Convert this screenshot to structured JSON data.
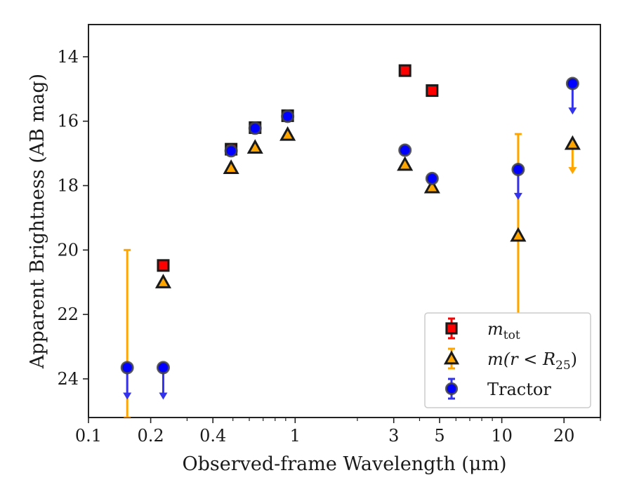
{
  "chart_data": {
    "type": "scatter",
    "xlabel": "Observed-frame Wavelength (μm)",
    "ylabel": "Apparent Brightness (AB mag)",
    "xscale": "log",
    "xlim": [
      0.1,
      30
    ],
    "ylim": [
      25.2,
      13.0
    ],
    "y_inverted": true,
    "grid": false,
    "legend_position": "lower-right",
    "x_ticks": [
      {
        "value": 0.1,
        "label": "0.1"
      },
      {
        "value": 0.2,
        "label": "0.2"
      },
      {
        "value": 0.4,
        "label": "0.4"
      },
      {
        "value": 1,
        "label": "1"
      },
      {
        "value": 3,
        "label": "3"
      },
      {
        "value": 5,
        "label": "5"
      },
      {
        "value": 10,
        "label": "10"
      },
      {
        "value": 20,
        "label": "20"
      }
    ],
    "y_ticks": [
      {
        "value": 14,
        "label": "14"
      },
      {
        "value": 16,
        "label": "16"
      },
      {
        "value": 18,
        "label": "18"
      },
      {
        "value": 20,
        "label": "20"
      },
      {
        "value": 22,
        "label": "22"
      },
      {
        "value": 24,
        "label": "24"
      }
    ],
    "series": [
      {
        "key": "mtot",
        "legend_main": "m",
        "legend_sub": "tot",
        "marker": "square",
        "fill": "#ff0000",
        "errcolor": "#ff0000",
        "points": [
          {
            "x": 0.23,
            "y": 20.48
          },
          {
            "x": 0.49,
            "y": 16.87
          },
          {
            "x": 0.64,
            "y": 16.2
          },
          {
            "x": 0.92,
            "y": 15.83
          },
          {
            "x": 3.4,
            "y": 14.43
          },
          {
            "x": 4.6,
            "y": 15.05
          }
        ]
      },
      {
        "key": "mr25",
        "legend_main": "m(r < R",
        "legend_sub": "25",
        "legend_tail": ")",
        "marker": "triangle",
        "fill": "#ffa500",
        "errcolor": "#ffa500",
        "points": [
          {
            "x": 0.23,
            "y": 21.0
          },
          {
            "x": 0.49,
            "y": 17.45
          },
          {
            "x": 0.64,
            "y": 16.82
          },
          {
            "x": 0.92,
            "y": 16.42
          },
          {
            "x": 3.4,
            "y": 17.35
          },
          {
            "x": 4.6,
            "y": 18.05
          },
          {
            "x": 12.0,
            "y": 19.55,
            "yerr_low": 16.4,
            "yerr_high": 22.7
          },
          {
            "x": 22.0,
            "y": 16.7,
            "upper_limit": 17.6
          },
          {
            "x": 0.154,
            "y": 25.2,
            "yerr_low": 20.0,
            "yerr_high": 25.2,
            "bar_only": true
          }
        ]
      },
      {
        "key": "tractor",
        "legend_main": "Tractor",
        "marker": "circle",
        "fill": "#0000ff",
        "errcolor": "#3333ee",
        "points": [
          {
            "x": 0.154,
            "y": 23.65,
            "upper_limit": 24.6
          },
          {
            "x": 0.23,
            "y": 23.65,
            "upper_limit": 24.6
          },
          {
            "x": 0.49,
            "y": 16.92
          },
          {
            "x": 0.64,
            "y": 16.22
          },
          {
            "x": 0.92,
            "y": 15.85
          },
          {
            "x": 3.4,
            "y": 16.9
          },
          {
            "x": 4.6,
            "y": 17.78
          },
          {
            "x": 12.0,
            "y": 17.5,
            "upper_limit": 18.4
          },
          {
            "x": 22.0,
            "y": 14.83,
            "upper_limit": 15.75
          }
        ]
      }
    ]
  }
}
